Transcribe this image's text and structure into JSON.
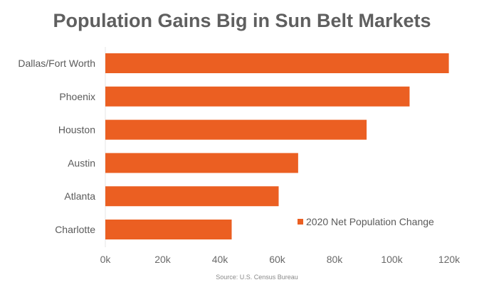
{
  "chart_data": {
    "type": "bar",
    "orientation": "horizontal",
    "title": "Population Gains Big in Sun Belt Markets",
    "categories": [
      "Dallas/Fort Worth",
      "Phoenix",
      "Houston",
      "Austin",
      "Atlanta",
      "Charlotte"
    ],
    "series": [
      {
        "name": "2020 Net Population Change",
        "values": [
          119900,
          106200,
          91200,
          67300,
          60500,
          44100
        ],
        "color": "#eb5f22"
      }
    ],
    "xlim": [
      0,
      120000
    ],
    "xticks": [
      0,
      20000,
      40000,
      60000,
      80000,
      100000,
      120000
    ],
    "xtick_labels": [
      "0k",
      "20k",
      "40k",
      "60k",
      "80k",
      "100k",
      "120k"
    ],
    "xlabel": "",
    "ylabel": "",
    "grid": false,
    "legend_placement": "bottom-right",
    "source": "Source: U.S. Census Bureau"
  }
}
